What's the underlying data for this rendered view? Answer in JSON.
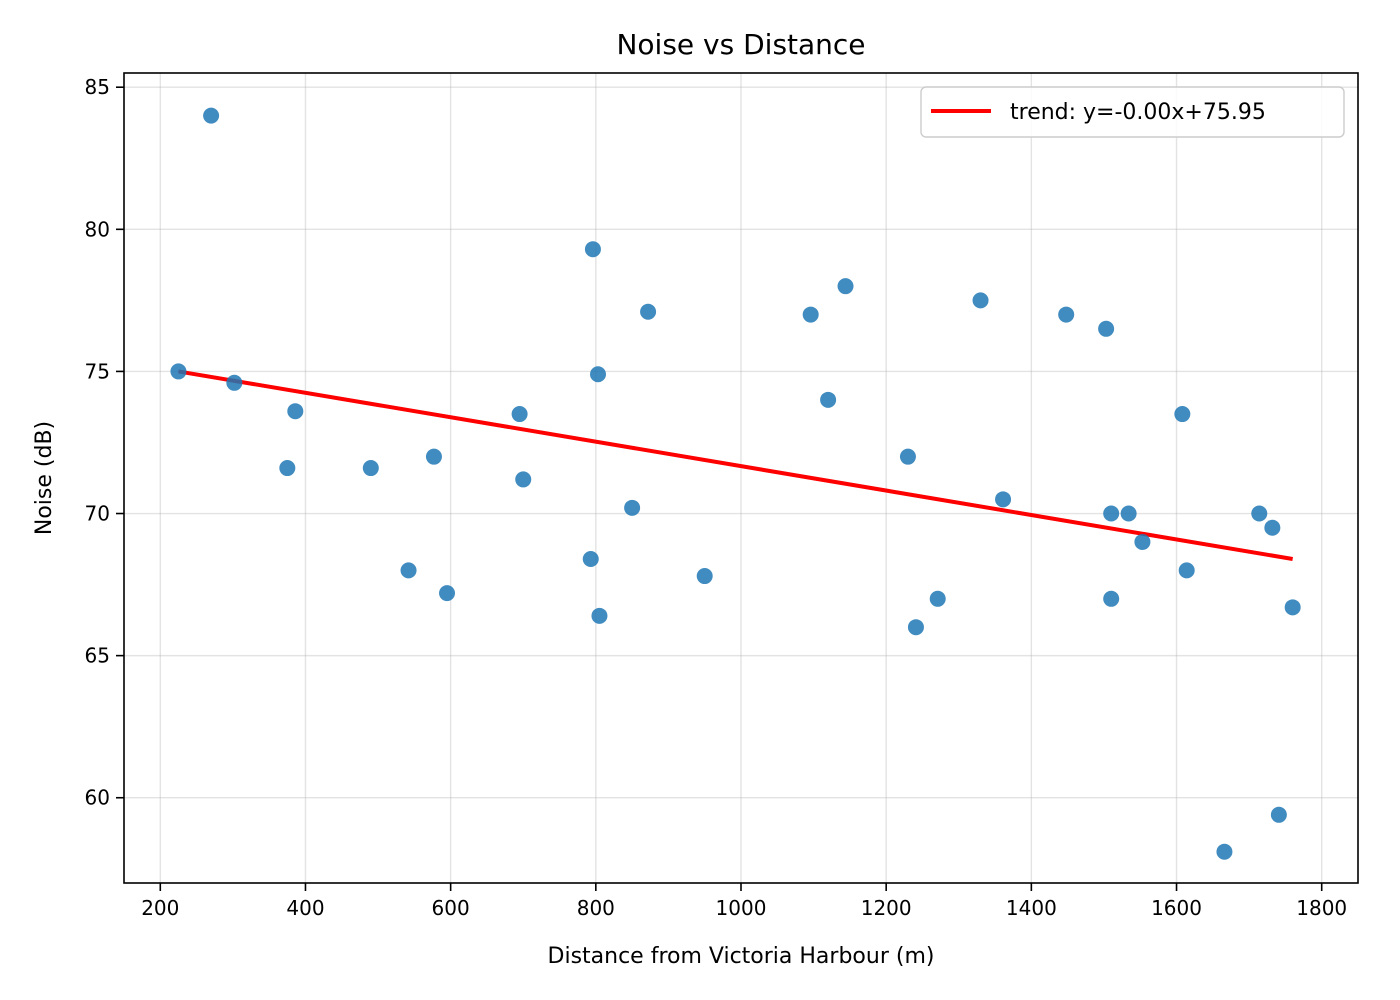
{
  "chart_data": {
    "type": "scatter",
    "title": "Noise vs Distance",
    "xlabel": "Distance from Victoria Harbour (m)",
    "ylabel": "Noise (dB)",
    "xlim": [
      150,
      1850
    ],
    "ylim": [
      57,
      85.5
    ],
    "xticks": [
      200,
      400,
      600,
      800,
      1000,
      1200,
      1400,
      1600,
      1800
    ],
    "yticks": [
      60,
      65,
      70,
      75,
      80,
      85
    ],
    "grid": true,
    "legend": "top-right",
    "colors": {
      "points": "#1f77b4",
      "trend": "#ff0000"
    },
    "points": [
      {
        "x": 225,
        "y": 75.0
      },
      {
        "x": 270,
        "y": 84.0
      },
      {
        "x": 302,
        "y": 74.6
      },
      {
        "x": 375,
        "y": 71.6
      },
      {
        "x": 386,
        "y": 73.6
      },
      {
        "x": 490,
        "y": 71.6
      },
      {
        "x": 542,
        "y": 68.0
      },
      {
        "x": 577,
        "y": 72.0
      },
      {
        "x": 595,
        "y": 67.2
      },
      {
        "x": 695,
        "y": 73.5
      },
      {
        "x": 700,
        "y": 71.2
      },
      {
        "x": 793,
        "y": 68.4
      },
      {
        "x": 796,
        "y": 79.3
      },
      {
        "x": 803,
        "y": 74.9
      },
      {
        "x": 805,
        "y": 66.4
      },
      {
        "x": 850,
        "y": 70.2
      },
      {
        "x": 872,
        "y": 77.1
      },
      {
        "x": 950,
        "y": 67.8
      },
      {
        "x": 1096,
        "y": 77.0
      },
      {
        "x": 1120,
        "y": 74.0
      },
      {
        "x": 1144,
        "y": 78.0
      },
      {
        "x": 1230,
        "y": 72.0
      },
      {
        "x": 1241,
        "y": 66.0
      },
      {
        "x": 1271,
        "y": 67.0
      },
      {
        "x": 1330,
        "y": 77.5
      },
      {
        "x": 1361,
        "y": 70.5
      },
      {
        "x": 1448,
        "y": 77.0
      },
      {
        "x": 1503,
        "y": 76.5
      },
      {
        "x": 1510,
        "y": 70.0
      },
      {
        "x": 1510,
        "y": 67.0
      },
      {
        "x": 1534,
        "y": 70.0
      },
      {
        "x": 1553,
        "y": 69.0
      },
      {
        "x": 1608,
        "y": 73.5
      },
      {
        "x": 1614,
        "y": 68.0
      },
      {
        "x": 1666,
        "y": 58.1
      },
      {
        "x": 1714,
        "y": 70.0
      },
      {
        "x": 1732,
        "y": 69.5
      },
      {
        "x": 1741,
        "y": 59.4
      },
      {
        "x": 1760,
        "y": 66.7
      }
    ],
    "trend": {
      "label": "trend: y=-0.00x+75.95",
      "x": [
        225,
        1760
      ],
      "y": [
        75.0,
        68.4
      ]
    }
  }
}
